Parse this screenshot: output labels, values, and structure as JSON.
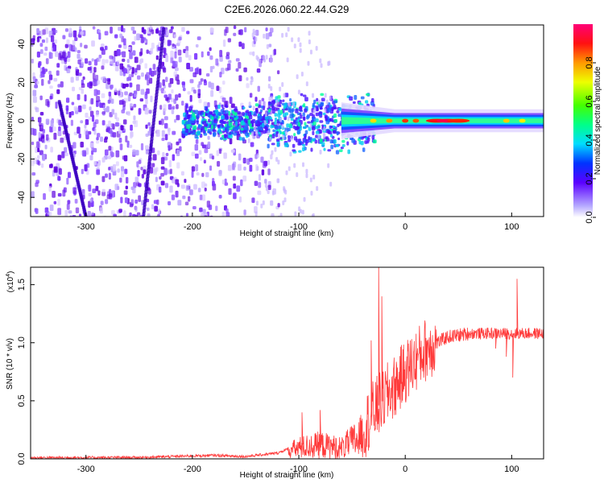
{
  "title": "C2E6.2026.060.22.44.G29",
  "chart_data": [
    {
      "type": "heatmap",
      "xlabel": "Height of straight line (km)",
      "ylabel": "Frequency (Hz)",
      "xlim": [
        -352,
        130
      ],
      "ylim": [
        -50,
        50
      ],
      "xticks": [
        -300,
        -200,
        -100,
        0,
        100
      ],
      "yticks": [
        -40,
        -20,
        0,
        20,
        40
      ],
      "colorbar": {
        "label": "Normalized spectral amplitude",
        "range": [
          0.0,
          1.0
        ],
        "ticks": [
          "0.0",
          "0.2",
          "0.4",
          "0.6",
          "0.8"
        ],
        "tick_values": [
          0.0,
          0.2,
          0.4,
          0.6,
          0.8
        ]
      },
      "features": [
        {
          "name": "main signal track",
          "x_range": [
            -50,
            130
          ],
          "frequency": 0,
          "peak_amplitude_near_x": 40
        },
        {
          "name": "diagonal streak 1",
          "from": [
            -325,
            10
          ],
          "to": [
            -300,
            -50
          ]
        },
        {
          "name": "diagonal streak 2",
          "from": [
            -227,
            48
          ],
          "to": [
            -246,
            -50
          ]
        }
      ]
    },
    {
      "type": "line",
      "xlabel": "Height of straight line (km)",
      "ylabel": "SNR (10 * v/v)",
      "y_multiplier": "(x10",
      "y_multiplier_exp": "4",
      "xlim": [
        -352,
        130
      ],
      "ylim": [
        0.0,
        1.65
      ],
      "xticks": [
        -300,
        -200,
        -100,
        0,
        100
      ],
      "yticks": [
        0.0,
        0.5,
        1.0,
        1.5
      ],
      "ytick_labels": [
        "0.0",
        "0.5",
        "1.0",
        "1.5"
      ],
      "series_color": "#ff3a3a",
      "envelope": {
        "x": [
          -352,
          -250,
          -180,
          -150,
          -120,
          -100,
          -80,
          -60,
          -40,
          -30,
          -20,
          -10,
          0,
          20,
          40,
          60,
          80,
          100,
          130
        ],
        "y": [
          0.01,
          0.012,
          0.03,
          0.02,
          0.05,
          0.12,
          0.15,
          0.12,
          0.25,
          0.4,
          0.52,
          0.62,
          0.75,
          0.95,
          1.05,
          1.08,
          1.08,
          1.08,
          1.08
        ]
      },
      "spikes": [
        {
          "x": -25,
          "y": 1.65
        },
        {
          "x": -22,
          "y": 1.4
        },
        {
          "x": -32,
          "y": 1.02
        },
        {
          "x": 105,
          "y": 1.55
        },
        {
          "x": 101,
          "y": 0.7
        },
        {
          "x": 95,
          "y": 0.88
        },
        {
          "x": 85,
          "y": 0.95
        },
        {
          "x": -97,
          "y": 0.4
        },
        {
          "x": -80,
          "y": 0.42
        }
      ]
    }
  ]
}
